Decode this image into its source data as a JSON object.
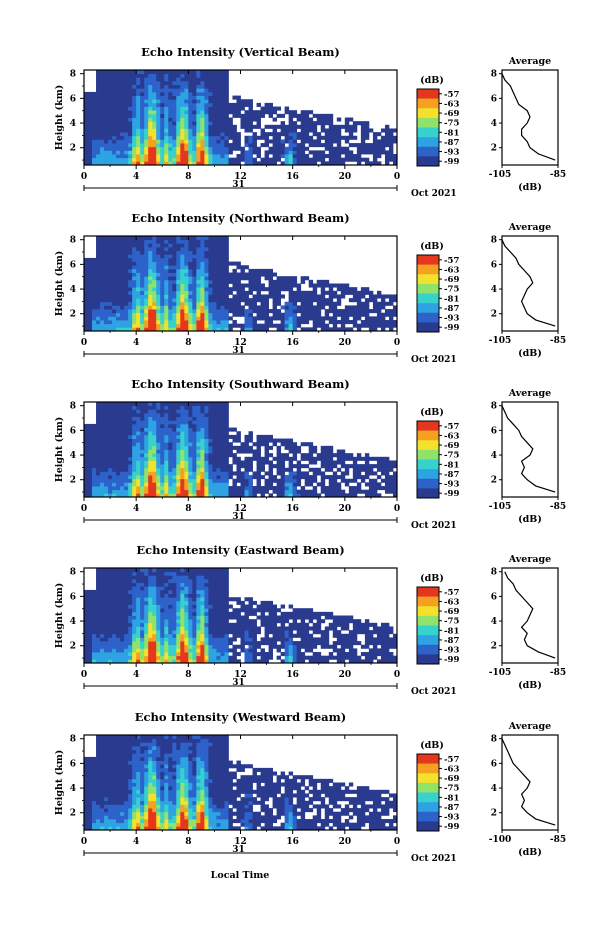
{
  "shared": {
    "x_label": "Local Time",
    "date_label": "Oct 2021",
    "day_label": "31",
    "y_label": "Height (km)",
    "y_ticks": [
      "8",
      "6",
      "4",
      "2"
    ],
    "x_ticks": [
      "0",
      "4",
      "8",
      "12",
      "16",
      "20",
      "0"
    ],
    "colorbar_unit": "(dB)",
    "colorbar_ticks": [
      "-57",
      "-63",
      "-69",
      "-75",
      "-81",
      "-87",
      "-93",
      "-99"
    ],
    "average_title": "Average",
    "average_xlabel": "(dB)",
    "avg_y_ticks": [
      "8",
      "6",
      "4",
      "2"
    ],
    "colors": {
      "background": "#283b8a",
      "scale": [
        "#2a3b8f",
        "#2c62c9",
        "#2ea3e3",
        "#37d2cc",
        "#8fe36a",
        "#f3e12c",
        "#f6a022",
        "#e5371d"
      ]
    }
  },
  "chart_data": [
    {
      "type": "heatmap",
      "title": "Echo Intensity (Vertical Beam)",
      "avg_xticks": [
        "-105",
        "-85"
      ],
      "avg_xlim": [
        -105,
        -85
      ],
      "avg_profile": [
        {
          "h": 1.0,
          "v": -86
        },
        {
          "h": 1.5,
          "v": -92
        },
        {
          "h": 2.0,
          "v": -95
        },
        {
          "h": 2.5,
          "v": -96
        },
        {
          "h": 3.0,
          "v": -98
        },
        {
          "h": 3.5,
          "v": -98
        },
        {
          "h": 4.0,
          "v": -96
        },
        {
          "h": 4.5,
          "v": -95
        },
        {
          "h": 5.0,
          "v": -96
        },
        {
          "h": 5.5,
          "v": -99
        },
        {
          "h": 6.0,
          "v": -100
        },
        {
          "h": 6.5,
          "v": -101
        },
        {
          "h": 7.0,
          "v": -102
        },
        {
          "h": 7.5,
          "v": -104
        },
        {
          "h": 8.0,
          "v": -105
        }
      ]
    },
    {
      "type": "heatmap",
      "title": "Echo Intensity (Northward Beam)",
      "avg_xticks": [
        "-105",
        "-85"
      ],
      "avg_xlim": [
        -105,
        -85
      ],
      "avg_profile": [
        {
          "h": 1.0,
          "v": -86
        },
        {
          "h": 1.5,
          "v": -93
        },
        {
          "h": 2.0,
          "v": -96
        },
        {
          "h": 2.5,
          "v": -97
        },
        {
          "h": 3.0,
          "v": -98
        },
        {
          "h": 3.5,
          "v": -97
        },
        {
          "h": 4.0,
          "v": -96
        },
        {
          "h": 4.5,
          "v": -94
        },
        {
          "h": 5.0,
          "v": -95
        },
        {
          "h": 5.5,
          "v": -97
        },
        {
          "h": 6.0,
          "v": -99
        },
        {
          "h": 6.5,
          "v": -100
        },
        {
          "h": 7.0,
          "v": -102
        },
        {
          "h": 7.5,
          "v": -104
        },
        {
          "h": 8.0,
          "v": -105
        }
      ]
    },
    {
      "type": "heatmap",
      "title": "Echo Intensity (Southward Beam)",
      "avg_xticks": [
        "-105",
        "-85"
      ],
      "avg_xlim": [
        -105,
        -85
      ],
      "avg_profile": [
        {
          "h": 1.0,
          "v": -86
        },
        {
          "h": 1.5,
          "v": -93
        },
        {
          "h": 2.0,
          "v": -96
        },
        {
          "h": 2.5,
          "v": -98
        },
        {
          "h": 3.0,
          "v": -97
        },
        {
          "h": 3.5,
          "v": -98
        },
        {
          "h": 4.0,
          "v": -95
        },
        {
          "h": 4.5,
          "v": -94
        },
        {
          "h": 5.0,
          "v": -96
        },
        {
          "h": 5.5,
          "v": -98
        },
        {
          "h": 6.0,
          "v": -99
        },
        {
          "h": 6.5,
          "v": -101
        },
        {
          "h": 7.0,
          "v": -103
        },
        {
          "h": 7.5,
          "v": -104
        },
        {
          "h": 8.0,
          "v": -105
        }
      ]
    },
    {
      "type": "heatmap",
      "title": "Echo Intensity (Eastward Beam)",
      "avg_xticks": [
        "-105",
        "-85"
      ],
      "avg_xlim": [
        -105,
        -85
      ],
      "avg_profile": [
        {
          "h": 1.0,
          "v": -86
        },
        {
          "h": 1.5,
          "v": -92
        },
        {
          "h": 2.0,
          "v": -96
        },
        {
          "h": 2.5,
          "v": -97
        },
        {
          "h": 3.0,
          "v": -96
        },
        {
          "h": 3.5,
          "v": -98
        },
        {
          "h": 4.0,
          "v": -96
        },
        {
          "h": 4.5,
          "v": -95
        },
        {
          "h": 5.0,
          "v": -94
        },
        {
          "h": 5.5,
          "v": -96
        },
        {
          "h": 6.0,
          "v": -98
        },
        {
          "h": 6.5,
          "v": -100
        },
        {
          "h": 7.0,
          "v": -101
        },
        {
          "h": 7.5,
          "v": -103
        },
        {
          "h": 8.0,
          "v": -104
        }
      ]
    },
    {
      "type": "heatmap",
      "title": "Echo Intensity (Westward Beam)",
      "avg_xticks": [
        "-100",
        "-85"
      ],
      "avg_xlim": [
        -105,
        -85
      ],
      "avg_profile": [
        {
          "h": 1.0,
          "v": -86
        },
        {
          "h": 1.5,
          "v": -93
        },
        {
          "h": 2.0,
          "v": -96
        },
        {
          "h": 2.5,
          "v": -98
        },
        {
          "h": 3.0,
          "v": -97
        },
        {
          "h": 3.5,
          "v": -98
        },
        {
          "h": 4.0,
          "v": -96
        },
        {
          "h": 4.5,
          "v": -95
        },
        {
          "h": 5.0,
          "v": -97
        },
        {
          "h": 5.5,
          "v": -99
        },
        {
          "h": 6.0,
          "v": -101
        },
        {
          "h": 6.5,
          "v": -102
        },
        {
          "h": 7.0,
          "v": -103
        },
        {
          "h": 7.5,
          "v": -104
        },
        {
          "h": 8.0,
          "v": -105
        }
      ]
    }
  ]
}
